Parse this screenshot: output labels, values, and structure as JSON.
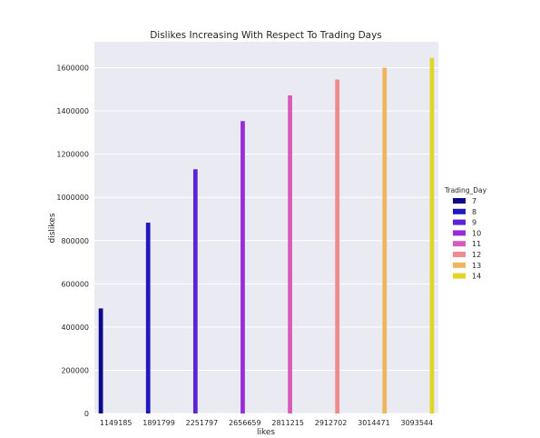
{
  "chart_data": {
    "type": "bar",
    "title": "Dislikes Increasing With Respect To Trading Days",
    "xlabel": "likes",
    "ylabel": "dislikes",
    "categories": [
      "1149185",
      "1891799",
      "2251797",
      "2656659",
      "2811215",
      "2912702",
      "3014471",
      "3093544"
    ],
    "ylim": [
      0,
      1720000
    ],
    "yticks": [
      0,
      200000,
      400000,
      600000,
      800000,
      1000000,
      1200000,
      1400000,
      1600000
    ],
    "grid": true,
    "background": "#eaeaf2",
    "legend": {
      "title": "Trading_Day",
      "placement": "center-right",
      "entries": [
        "7",
        "8",
        "9",
        "10",
        "11",
        "12",
        "13",
        "14"
      ]
    },
    "series": [
      {
        "name": "7",
        "color": "#0d0887",
        "values": [
          486000,
          null,
          null,
          null,
          null,
          null,
          null,
          null
        ]
      },
      {
        "name": "8",
        "color": "#1f18c0",
        "values": [
          null,
          883000,
          null,
          null,
          null,
          null,
          null,
          null
        ]
      },
      {
        "name": "9",
        "color": "#5b22d6",
        "values": [
          null,
          null,
          1130000,
          null,
          null,
          null,
          null,
          null
        ]
      },
      {
        "name": "10",
        "color": "#9a2bd8",
        "values": [
          null,
          null,
          null,
          1353000,
          null,
          null,
          null,
          null
        ]
      },
      {
        "name": "11",
        "color": "#d85bbb",
        "values": [
          null,
          null,
          null,
          null,
          1472000,
          null,
          null,
          null
        ]
      },
      {
        "name": "12",
        "color": "#ef8a8e",
        "values": [
          null,
          null,
          null,
          null,
          null,
          1545000,
          null,
          null
        ]
      },
      {
        "name": "13",
        "color": "#f0b45a",
        "values": [
          null,
          null,
          null,
          null,
          null,
          null,
          1600000,
          null
        ]
      },
      {
        "name": "14",
        "color": "#e2d52a",
        "values": [
          null,
          null,
          null,
          null,
          null,
          null,
          null,
          1645000
        ]
      }
    ]
  }
}
